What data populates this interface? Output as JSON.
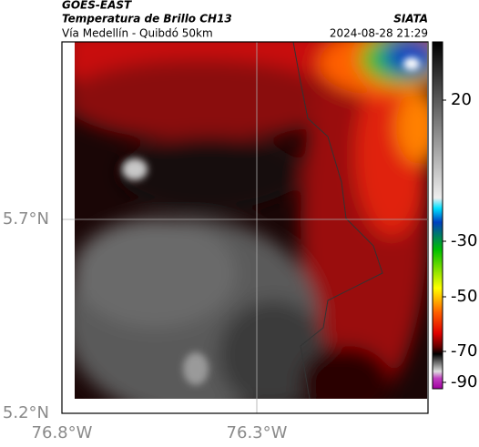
{
  "header": {
    "satellite": "GOES-EAST",
    "product": "Temperatura de Brillo CH13",
    "source": "SIATA",
    "region": "Vía Medellín - Quibdó 50km",
    "timestamp": "2024-08-28 21:29"
  },
  "axes": {
    "latitude_labels": [
      "5.7°N",
      "5.2°N"
    ],
    "longitude_labels": [
      "76.8°W",
      "76.3°W"
    ]
  },
  "colorbar": {
    "labels": [
      "20",
      "-30",
      "-50",
      "-70",
      "-90"
    ]
  }
}
